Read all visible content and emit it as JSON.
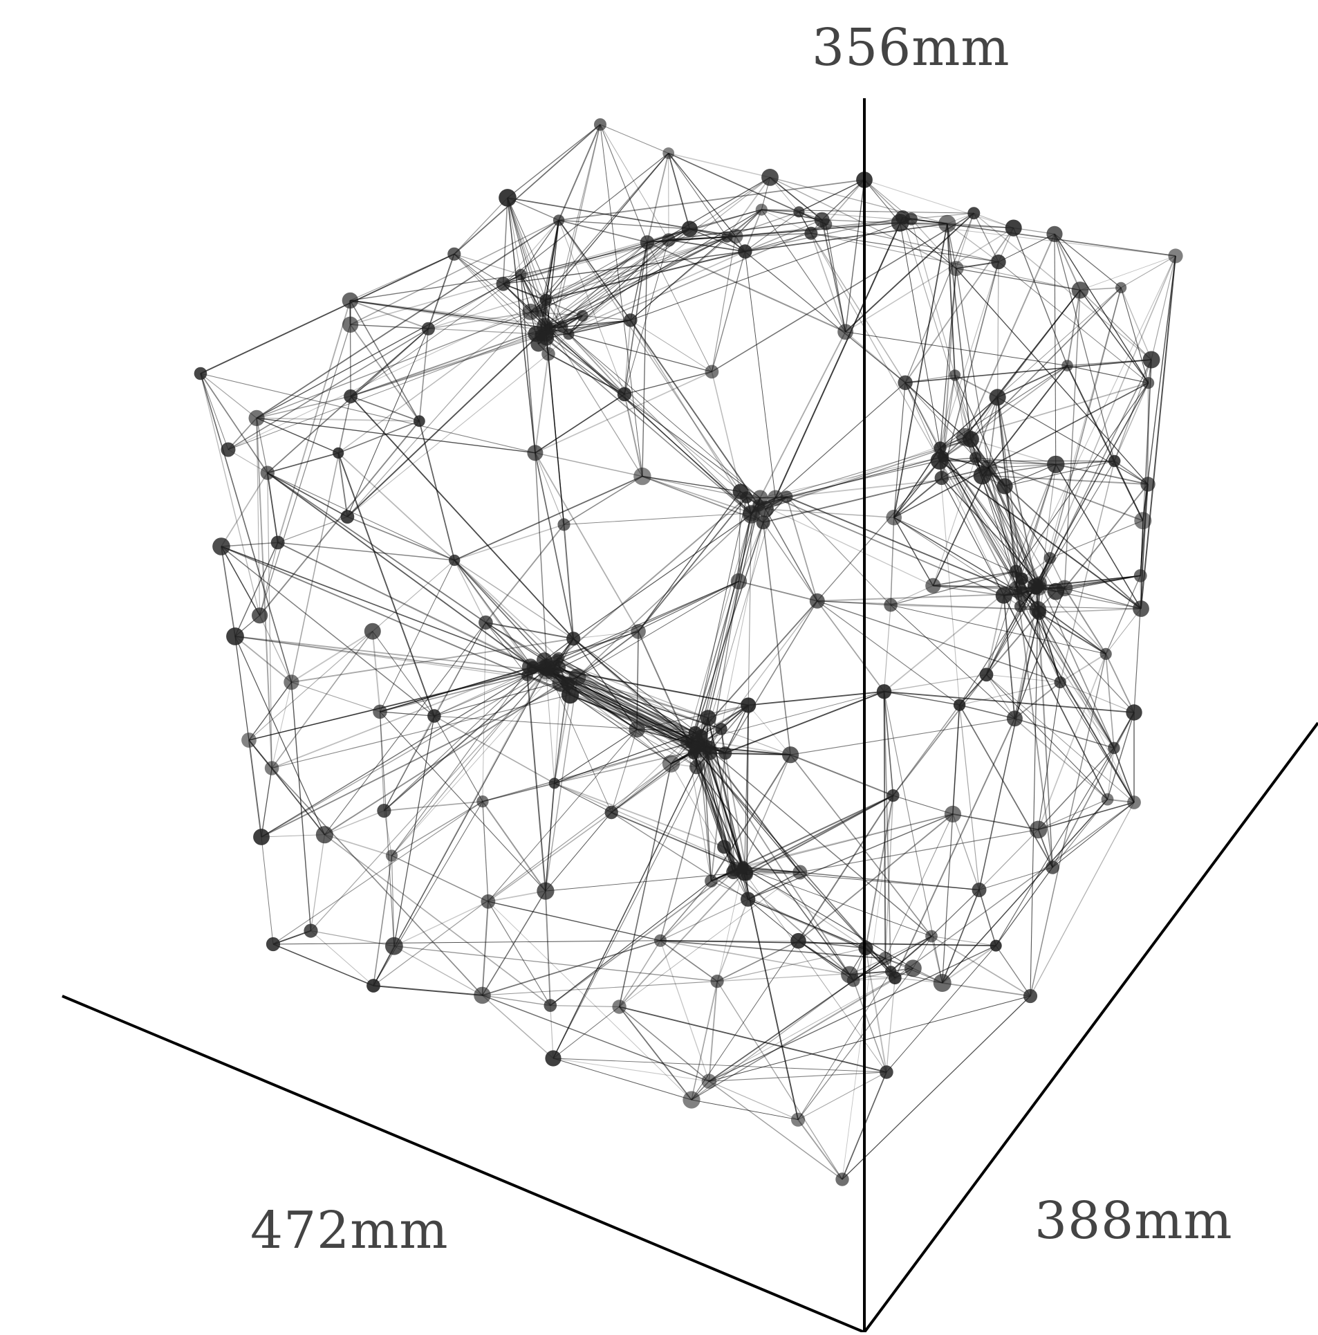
{
  "dimensions": {
    "height_label": "356mm",
    "width_label": "472mm",
    "depth_label": "388mm"
  },
  "colors": {
    "background": "#ffffff",
    "axis": "#000000",
    "edge": "#000000",
    "node": "#222222",
    "label": "#444444"
  }
}
